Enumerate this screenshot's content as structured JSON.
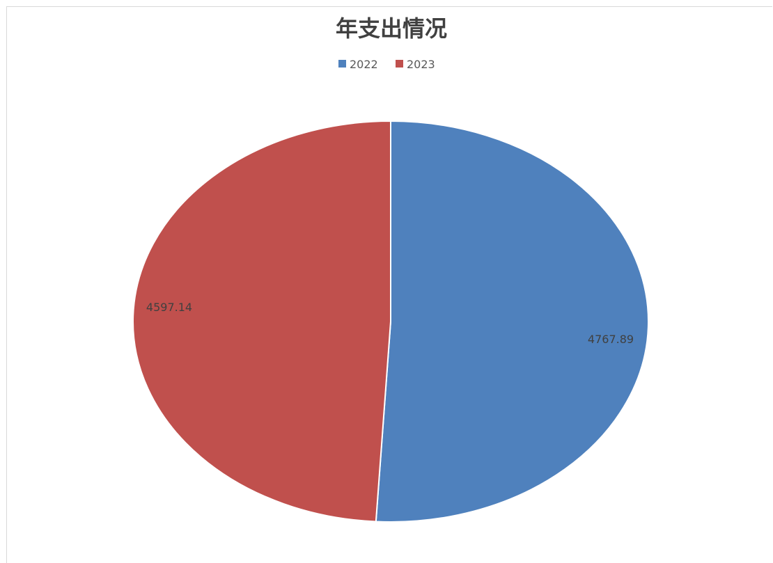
{
  "chart_data": {
    "type": "pie",
    "title": "年支出情况",
    "categories": [
      "2022",
      "2023"
    ],
    "values": [
      4767.89,
      4597.14
    ],
    "data_labels": [
      "4767.89",
      "4597.14"
    ],
    "colors": [
      "#4F81BD",
      "#C0504D"
    ],
    "legend": {
      "placement": "top",
      "entries": [
        "2022",
        "2023"
      ]
    }
  }
}
